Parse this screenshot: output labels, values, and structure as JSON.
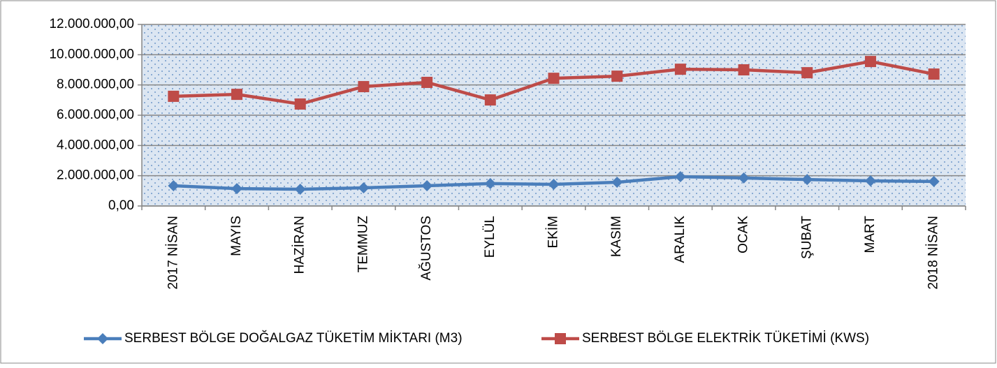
{
  "chart_data": {
    "type": "line",
    "categories": [
      "2017 NİSAN",
      "MAYIS",
      "HAZİRAN",
      "TEMMUZ",
      "AĞUSTOS",
      "EYLÜL",
      "EKİM",
      "KASIM",
      "ARALIK",
      "OCAK",
      "ŞUBAT",
      "MART",
      "2018 NİSAN"
    ],
    "series": [
      {
        "name": "SERBEST BÖLGE DOĞALGAZ TÜKETİM MİKTARI (M3)",
        "color": "#4a7ebb",
        "marker": "diamond",
        "values": [
          1340000,
          1150000,
          1110000,
          1200000,
          1340000,
          1480000,
          1430000,
          1570000,
          1940000,
          1850000,
          1750000,
          1660000,
          1620000
        ]
      },
      {
        "name": "SERBEST BÖLGE ELEKTRİK TÜKETİMİ (KWS)",
        "color": "#be4b48",
        "marker": "square",
        "values": [
          7250000,
          7380000,
          6740000,
          7890000,
          8170000,
          7010000,
          8440000,
          8580000,
          9040000,
          9000000,
          8810000,
          9550000,
          8720000
        ]
      }
    ],
    "ylim": [
      0,
      12000000
    ],
    "yticks": [
      {
        "value": 0,
        "label": "0,00"
      },
      {
        "value": 2000000,
        "label": "2.000.000,00"
      },
      {
        "value": 4000000,
        "label": "4.000.000,00"
      },
      {
        "value": 6000000,
        "label": "6.000.000,00"
      },
      {
        "value": 8000000,
        "label": "8.000.000,00"
      },
      {
        "value": 10000000,
        "label": "10.000.000,00"
      },
      {
        "value": 12000000,
        "label": "12.000.000,00"
      }
    ],
    "grid": true,
    "legend": "bottom"
  }
}
